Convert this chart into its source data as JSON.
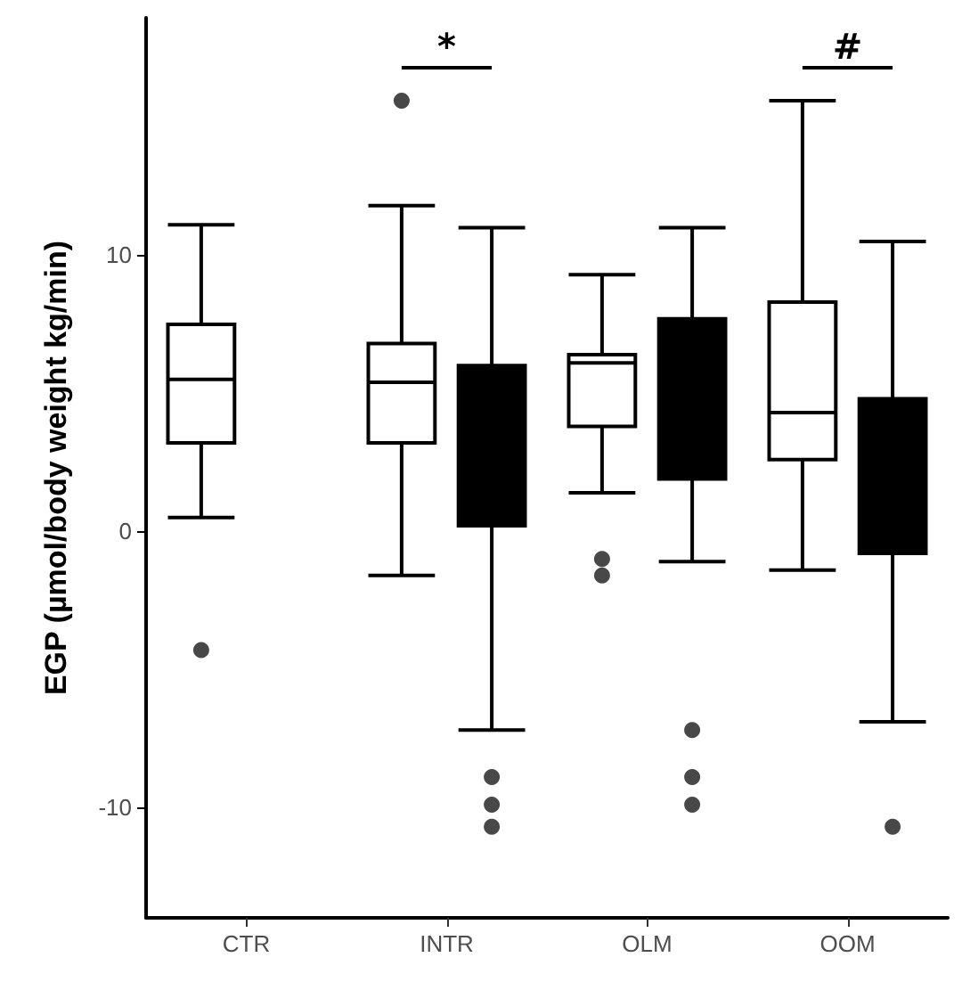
{
  "chart_data": {
    "type": "box",
    "ylabel": "EGP (µmol/body weight kg/min)",
    "categories": [
      "CTR",
      "INTR",
      "OLM",
      "OOM"
    ],
    "ylim": [
      -14,
      18.6
    ],
    "yticks": [
      -10,
      0,
      10
    ],
    "grid": false,
    "series": [
      {
        "color": "#ffffff",
        "boxes": [
          {
            "low": 0.5,
            "q1": 3.2,
            "median": 5.5,
            "q3": 7.5,
            "high": 11.1,
            "outliers": [
              -4.3
            ]
          },
          {
            "low": -1.6,
            "q1": 3.2,
            "median": 5.4,
            "q3": 6.8,
            "high": 11.8,
            "outliers": [
              15.6
            ]
          },
          {
            "low": 1.4,
            "q1": 3.8,
            "median": 6.1,
            "q3": 6.4,
            "high": 9.3,
            "outliers": [
              -1.0,
              -1.6
            ]
          },
          {
            "low": -1.4,
            "q1": 2.6,
            "median": 4.3,
            "q3": 8.3,
            "high": 15.6
          }
        ]
      },
      {
        "color": "#000000",
        "boxes": [
          null,
          {
            "low": -7.2,
            "q1": 0.2,
            "median": 3.9,
            "q3": 6.0,
            "high": 11.0,
            "outliers": [
              -8.9,
              -9.9,
              -10.7
            ]
          },
          {
            "low": -1.1,
            "q1": 1.9,
            "median": 5.1,
            "q3": 7.7,
            "high": 11.0,
            "outliers": [
              -7.2,
              -8.9,
              -9.9
            ]
          },
          {
            "low": -6.9,
            "q1": -0.8,
            "median": 3.8,
            "q3": 4.8,
            "high": 10.5,
            "outliers": [
              -10.7
            ]
          }
        ]
      }
    ],
    "annotations": [
      "*",
      "#"
    ]
  }
}
